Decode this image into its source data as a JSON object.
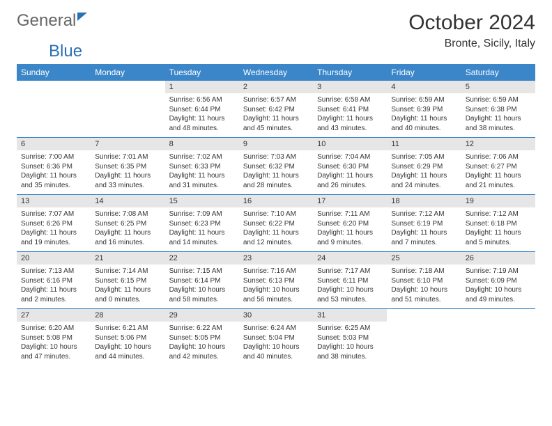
{
  "logo": {
    "part1": "General",
    "part2": "Blue"
  },
  "title": "October 2024",
  "subtitle": "Bronte, Sicily, Italy",
  "colors": {
    "header_bg": "#3b86c9",
    "header_text": "#ffffff",
    "daynum_bg": "#e6e6e6",
    "text": "#333333",
    "separator": "#3b86c9"
  },
  "fontsize": {
    "title": 30,
    "subtitle": 16,
    "dayheader": 12,
    "daynum": 11,
    "cell": 10
  },
  "day_headers": [
    "Sunday",
    "Monday",
    "Tuesday",
    "Wednesday",
    "Thursday",
    "Friday",
    "Saturday"
  ],
  "weeks": [
    [
      {
        "empty": true
      },
      {
        "empty": true
      },
      {
        "num": "1",
        "sunrise": "Sunrise: 6:56 AM",
        "sunset": "Sunset: 6:44 PM",
        "daylight": "Daylight: 11 hours and 48 minutes."
      },
      {
        "num": "2",
        "sunrise": "Sunrise: 6:57 AM",
        "sunset": "Sunset: 6:42 PM",
        "daylight": "Daylight: 11 hours and 45 minutes."
      },
      {
        "num": "3",
        "sunrise": "Sunrise: 6:58 AM",
        "sunset": "Sunset: 6:41 PM",
        "daylight": "Daylight: 11 hours and 43 minutes."
      },
      {
        "num": "4",
        "sunrise": "Sunrise: 6:59 AM",
        "sunset": "Sunset: 6:39 PM",
        "daylight": "Daylight: 11 hours and 40 minutes."
      },
      {
        "num": "5",
        "sunrise": "Sunrise: 6:59 AM",
        "sunset": "Sunset: 6:38 PM",
        "daylight": "Daylight: 11 hours and 38 minutes."
      }
    ],
    [
      {
        "num": "6",
        "sunrise": "Sunrise: 7:00 AM",
        "sunset": "Sunset: 6:36 PM",
        "daylight": "Daylight: 11 hours and 35 minutes."
      },
      {
        "num": "7",
        "sunrise": "Sunrise: 7:01 AM",
        "sunset": "Sunset: 6:35 PM",
        "daylight": "Daylight: 11 hours and 33 minutes."
      },
      {
        "num": "8",
        "sunrise": "Sunrise: 7:02 AM",
        "sunset": "Sunset: 6:33 PM",
        "daylight": "Daylight: 11 hours and 31 minutes."
      },
      {
        "num": "9",
        "sunrise": "Sunrise: 7:03 AM",
        "sunset": "Sunset: 6:32 PM",
        "daylight": "Daylight: 11 hours and 28 minutes."
      },
      {
        "num": "10",
        "sunrise": "Sunrise: 7:04 AM",
        "sunset": "Sunset: 6:30 PM",
        "daylight": "Daylight: 11 hours and 26 minutes."
      },
      {
        "num": "11",
        "sunrise": "Sunrise: 7:05 AM",
        "sunset": "Sunset: 6:29 PM",
        "daylight": "Daylight: 11 hours and 24 minutes."
      },
      {
        "num": "12",
        "sunrise": "Sunrise: 7:06 AM",
        "sunset": "Sunset: 6:27 PM",
        "daylight": "Daylight: 11 hours and 21 minutes."
      }
    ],
    [
      {
        "num": "13",
        "sunrise": "Sunrise: 7:07 AM",
        "sunset": "Sunset: 6:26 PM",
        "daylight": "Daylight: 11 hours and 19 minutes."
      },
      {
        "num": "14",
        "sunrise": "Sunrise: 7:08 AM",
        "sunset": "Sunset: 6:25 PM",
        "daylight": "Daylight: 11 hours and 16 minutes."
      },
      {
        "num": "15",
        "sunrise": "Sunrise: 7:09 AM",
        "sunset": "Sunset: 6:23 PM",
        "daylight": "Daylight: 11 hours and 14 minutes."
      },
      {
        "num": "16",
        "sunrise": "Sunrise: 7:10 AM",
        "sunset": "Sunset: 6:22 PM",
        "daylight": "Daylight: 11 hours and 12 minutes."
      },
      {
        "num": "17",
        "sunrise": "Sunrise: 7:11 AM",
        "sunset": "Sunset: 6:20 PM",
        "daylight": "Daylight: 11 hours and 9 minutes."
      },
      {
        "num": "18",
        "sunrise": "Sunrise: 7:12 AM",
        "sunset": "Sunset: 6:19 PM",
        "daylight": "Daylight: 11 hours and 7 minutes."
      },
      {
        "num": "19",
        "sunrise": "Sunrise: 7:12 AM",
        "sunset": "Sunset: 6:18 PM",
        "daylight": "Daylight: 11 hours and 5 minutes."
      }
    ],
    [
      {
        "num": "20",
        "sunrise": "Sunrise: 7:13 AM",
        "sunset": "Sunset: 6:16 PM",
        "daylight": "Daylight: 11 hours and 2 minutes."
      },
      {
        "num": "21",
        "sunrise": "Sunrise: 7:14 AM",
        "sunset": "Sunset: 6:15 PM",
        "daylight": "Daylight: 11 hours and 0 minutes."
      },
      {
        "num": "22",
        "sunrise": "Sunrise: 7:15 AM",
        "sunset": "Sunset: 6:14 PM",
        "daylight": "Daylight: 10 hours and 58 minutes."
      },
      {
        "num": "23",
        "sunrise": "Sunrise: 7:16 AM",
        "sunset": "Sunset: 6:13 PM",
        "daylight": "Daylight: 10 hours and 56 minutes."
      },
      {
        "num": "24",
        "sunrise": "Sunrise: 7:17 AM",
        "sunset": "Sunset: 6:11 PM",
        "daylight": "Daylight: 10 hours and 53 minutes."
      },
      {
        "num": "25",
        "sunrise": "Sunrise: 7:18 AM",
        "sunset": "Sunset: 6:10 PM",
        "daylight": "Daylight: 10 hours and 51 minutes."
      },
      {
        "num": "26",
        "sunrise": "Sunrise: 7:19 AM",
        "sunset": "Sunset: 6:09 PM",
        "daylight": "Daylight: 10 hours and 49 minutes."
      }
    ],
    [
      {
        "num": "27",
        "sunrise": "Sunrise: 6:20 AM",
        "sunset": "Sunset: 5:08 PM",
        "daylight": "Daylight: 10 hours and 47 minutes."
      },
      {
        "num": "28",
        "sunrise": "Sunrise: 6:21 AM",
        "sunset": "Sunset: 5:06 PM",
        "daylight": "Daylight: 10 hours and 44 minutes."
      },
      {
        "num": "29",
        "sunrise": "Sunrise: 6:22 AM",
        "sunset": "Sunset: 5:05 PM",
        "daylight": "Daylight: 10 hours and 42 minutes."
      },
      {
        "num": "30",
        "sunrise": "Sunrise: 6:24 AM",
        "sunset": "Sunset: 5:04 PM",
        "daylight": "Daylight: 10 hours and 40 minutes."
      },
      {
        "num": "31",
        "sunrise": "Sunrise: 6:25 AM",
        "sunset": "Sunset: 5:03 PM",
        "daylight": "Daylight: 10 hours and 38 minutes."
      },
      {
        "empty": true
      },
      {
        "empty": true
      }
    ]
  ]
}
